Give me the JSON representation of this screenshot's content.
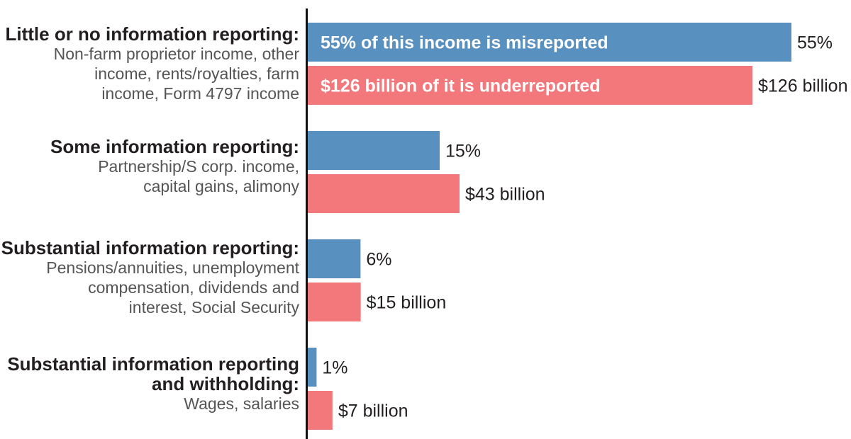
{
  "colors": {
    "misreported": "#5890c0",
    "underreported": "#f2787c",
    "axis": "#111111"
  },
  "categories": [
    {
      "title_lines": [
        "Little or no information reporting:"
      ],
      "desc_lines": [
        "Non-farm proprietor income, other",
        "income, rents/royalties, farm",
        "income, Form 4797 income"
      ]
    },
    {
      "title_lines": [
        "Some information reporting:"
      ],
      "desc_lines": [
        "Partnership/S corp. income,",
        "capital gains, alimony"
      ]
    },
    {
      "title_lines": [
        "Substantial information reporting:"
      ],
      "desc_lines": [
        "Pensions/annuities, unemployment",
        "compensation, dividends and",
        "interest, Social Security"
      ]
    },
    {
      "title_lines": [
        "Substantial information reporting",
        "and withholding:"
      ],
      "desc_lines": [
        "Wages, salaries"
      ]
    }
  ],
  "chart_data": {
    "type": "bar",
    "orientation": "horizontal",
    "categories": [
      "Little or no information reporting:",
      "Some information reporting:",
      "Substantial information reporting:",
      "Substantial information reporting and withholding:"
    ],
    "series": [
      {
        "values": [
          55,
          15,
          6,
          1
        ],
        "labels": [
          "55%",
          "15%",
          "6%",
          "1%"
        ],
        "inline_label": "55% of this income is misreported"
      },
      {
        "values": [
          126,
          43,
          15,
          7
        ],
        "labels": [
          "$126 billion",
          "$43 billion",
          "$15 billion",
          "$7 billion"
        ],
        "inline_label": "$126 billion of it is underreported"
      }
    ],
    "grid": false,
    "legend": "none"
  }
}
